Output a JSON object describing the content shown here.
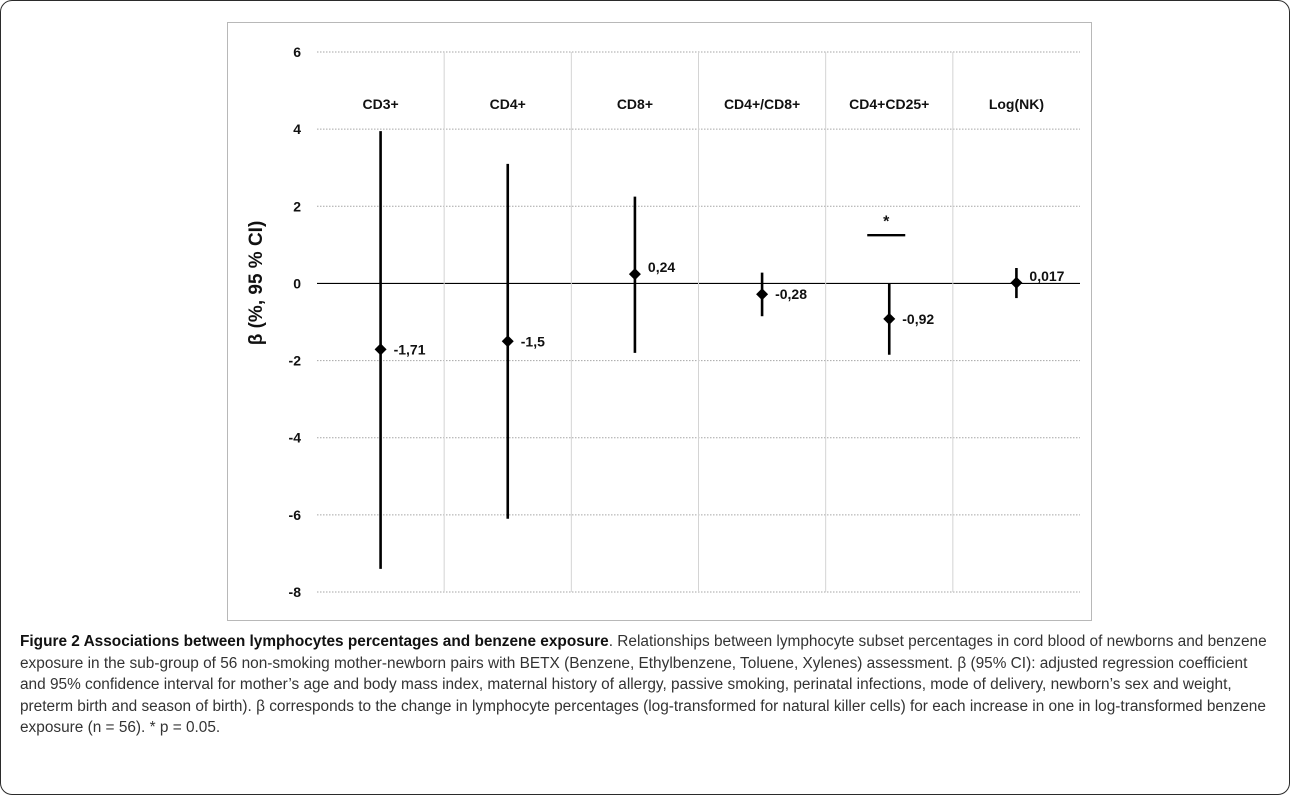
{
  "figure": {
    "caption_title": "Figure 2 Associations between lymphocytes percentages and benzene exposure",
    "caption_body": ". Relationships between lymphocyte subset percentages in cord blood of newborns and benzene exposure in the sub-group of 56 non-smoking mother-newborn pairs with BETX (Benzene, Ethylbenzene, Toluene, Xylenes) assessment. β (95% CI): adjusted regression coefficient and 95% confidence interval for mother’s age and body mass index, maternal history of allergy, passive smoking, perinatal infections, mode of delivery, newborn’s sex and weight, preterm birth and season of birth). β corresponds to the change in lymphocyte percentages (log-transformed for natural killer cells) for each increase in one in log-transformed benzene exposure (n = 56). * p = 0.05."
  },
  "chart_data": {
    "type": "scatter",
    "subtype": "forest-plot-with-error-bars",
    "title": "",
    "ylabel": "β (%, 95 % CI)",
    "xlabel": "",
    "ylim": [
      -8,
      6
    ],
    "yticks": [
      -8,
      -6,
      -4,
      -2,
      0,
      2,
      4,
      6
    ],
    "grid": true,
    "categories": [
      "CD3+",
      "CD4+",
      "CD8+",
      "CD4+/CD8+",
      "CD4+CD25+",
      "Log(NK)"
    ],
    "series": [
      {
        "values": [
          -1.71,
          -1.5,
          0.24,
          -0.28,
          -0.92,
          0.017
        ],
        "ci_lower": [
          -7.4,
          -6.1,
          -1.8,
          -0.85,
          -1.85,
          -0.38
        ],
        "ci_upper": [
          3.95,
          3.1,
          2.25,
          0.28,
          0.0,
          0.4
        ],
        "labels": [
          "-1,71",
          "-1,5",
          "0,24",
          "-0,28",
          "-0,92",
          "0,017"
        ]
      }
    ],
    "annotations": [
      {
        "text": "*",
        "category": "CD4+CD25+",
        "y": 1.6,
        "underline_y": 1.25
      }
    ],
    "marker": "diamond",
    "color": "#000000",
    "gridline_color": "#a6a6a6"
  }
}
